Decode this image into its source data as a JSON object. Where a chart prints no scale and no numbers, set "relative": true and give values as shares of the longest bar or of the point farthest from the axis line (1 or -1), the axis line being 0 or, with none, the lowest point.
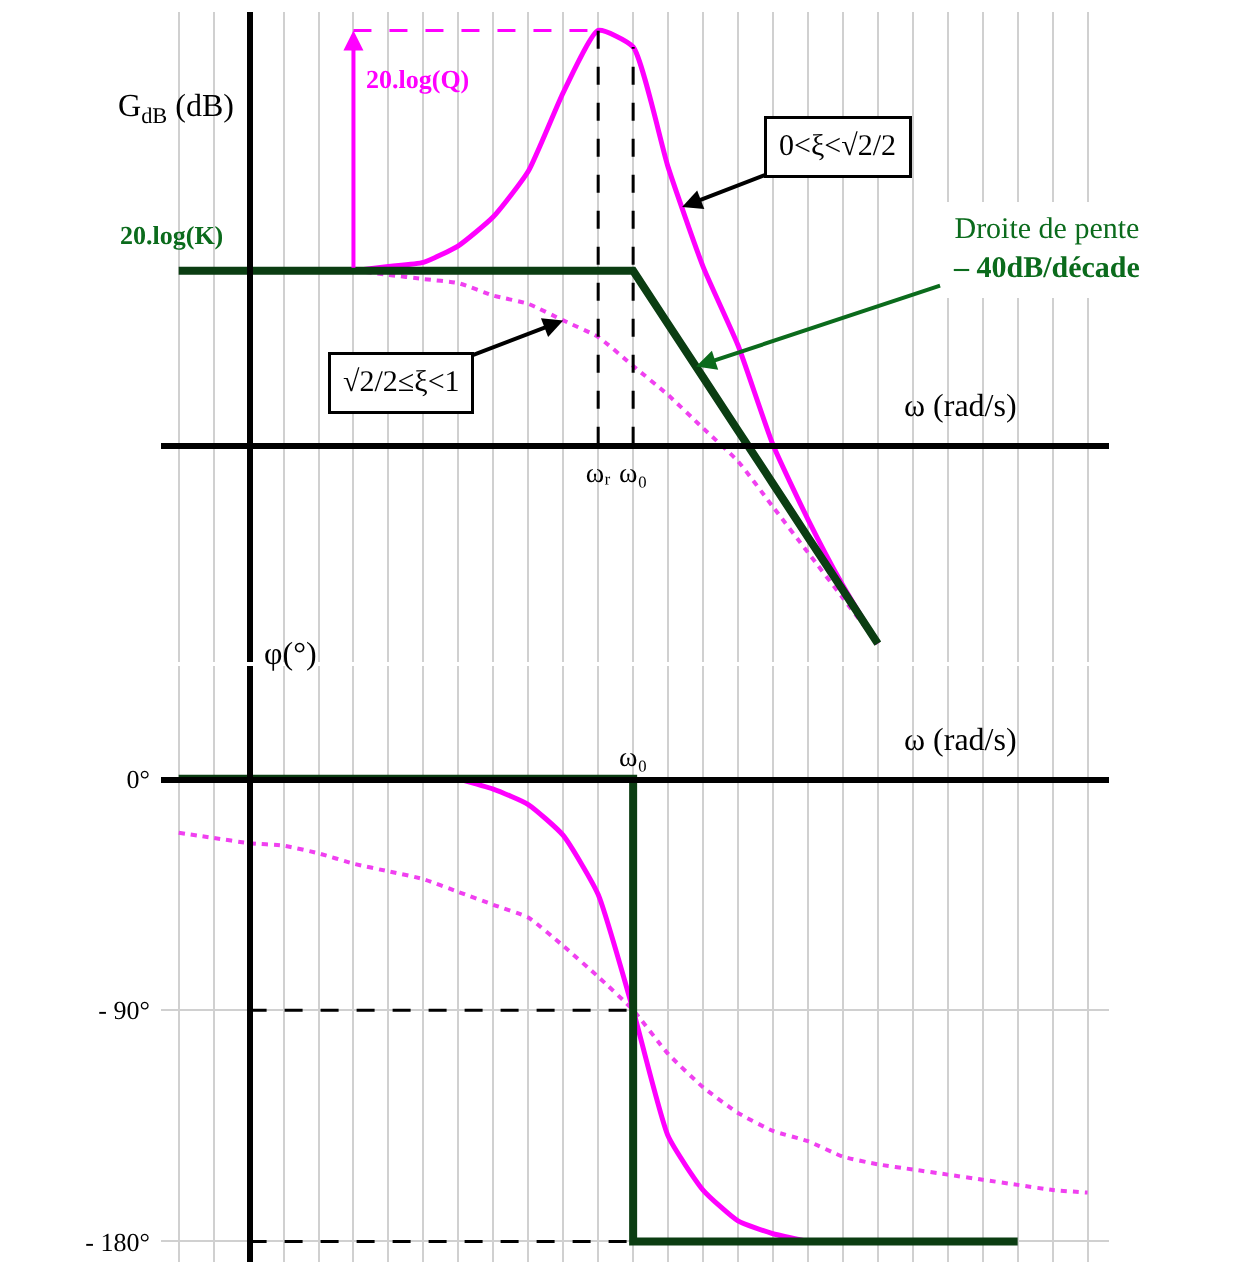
{
  "chart_data": [
    {
      "type": "line",
      "relative": true,
      "ylabel": "G$_{dB}$ (dB)",
      "xlabel": "ω (rad/s)",
      "tick_labels": "x",
      "grid": true,
      "categories": [
        null,
        null,
        null,
        null,
        null,
        null,
        null,
        null,
        null,
        null,
        null,
        null,
        null,
        null,
        null,
        null,
        null,
        "ωᵣ",
        "ω₀",
        null,
        null,
        null,
        null,
        null,
        null,
        null,
        null,
        null,
        null,
        null,
        null,
        null
      ],
      "series": [
        {
          "color": "#ff00ff",
          "line_style": "solid",
          "values": [
            null,
            null,
            null,
            null,
            null,
            null,
            null,
            null,
            null,
            null,
            0.42,
            0.43,
            0.44,
            0.48,
            0.55,
            0.66,
            0.85,
            1.0,
            0.96,
            0.67,
            0.43,
            0.24,
            0,
            -0.18,
            -0.34,
            -0.48,
            null,
            null,
            null,
            null,
            null,
            null
          ]
        },
        {
          "color": "#f040f0",
          "line_style": "dotted",
          "values": [
            null,
            null,
            null,
            null,
            null,
            null,
            null,
            null,
            null,
            null,
            0.42,
            0.41,
            0.4,
            0.39,
            0.36,
            0.34,
            0.3,
            0.26,
            0.19,
            0.12,
            0.04,
            -0.04,
            -0.15,
            -0.26,
            -0.37,
            -0.48,
            null,
            null,
            null,
            null,
            null,
            null
          ]
        },
        {
          "color": "#0b3d12",
          "line_style": "solid",
          "values": [
            null,
            null,
            null,
            null,
            null,
            0.42,
            0.42,
            0.42,
            0.42,
            0.42,
            0.42,
            0.42,
            0.42,
            0.42,
            0.42,
            0.42,
            0.42,
            0.42,
            0.42,
            0.291,
            0.163,
            0.034,
            -0.094,
            -0.223,
            -0.351,
            -0.48,
            null,
            null,
            null,
            null,
            null,
            null
          ]
        }
      ],
      "ref_lines": [
        {
          "axis": "x",
          "value": "ωᵣ",
          "line_style": "dashed",
          "color": "#000000"
        },
        {
          "axis": "x",
          "value": "ω₀",
          "line_style": "dashed",
          "color": "#000000"
        }
      ],
      "annotations": [
        {
          "text": "20.log(K)",
          "y": 0.42
        },
        "20.log(Q)",
        "0<ξ<√2/2",
        "√2/2≤ξ<1",
        "Droite de pente\n– 40dB/décade"
      ]
    },
    {
      "type": "line",
      "ylabel": "φ(°)",
      "xlabel": "ω (rad/s)",
      "ylim": [
        -188,
        44
      ],
      "yticks": [
        {
          "value": 0,
          "label": "0°"
        },
        {
          "value": -90,
          "label": "- 90°"
        },
        {
          "value": -180,
          "label": "- 180°"
        }
      ],
      "grid": true,
      "categories": [
        null,
        null,
        null,
        null,
        null,
        null,
        null,
        null,
        null,
        null,
        null,
        null,
        null,
        null,
        null,
        null,
        null,
        null,
        "ω₀",
        null,
        null,
        null,
        null,
        null,
        null,
        null,
        null,
        null,
        null,
        null,
        null,
        null
      ],
      "series": [
        {
          "color": "#ff00ff",
          "line_style": "solid",
          "values": [
            null,
            null,
            null,
            null,
            null,
            null,
            null,
            null,
            null,
            null,
            null,
            null,
            null,
            0,
            -4,
            -10,
            -22,
            -45,
            -90,
            -139,
            -160,
            -172,
            -177,
            -180,
            null,
            null,
            null,
            null,
            null,
            null,
            null,
            null
          ]
        },
        {
          "color": "#f040f0",
          "line_style": "dotted",
          "values": [
            null,
            null,
            null,
            null,
            null,
            -21,
            -23,
            -25,
            -26,
            -29,
            -33,
            -36,
            -39,
            -44,
            -49,
            -54,
            -65,
            -77,
            -90,
            -107,
            -120,
            -130,
            -137,
            -141,
            -147,
            -150,
            -152,
            -154,
            -156,
            -158,
            -160,
            -161
          ]
        },
        {
          "type": "step",
          "color": "#0b3d12",
          "line_style": "solid",
          "values": [
            null,
            null,
            null,
            null,
            null,
            0,
            0,
            0,
            0,
            0,
            0,
            0,
            0,
            0,
            0,
            0,
            0,
            0,
            -180,
            -180,
            -180,
            -180,
            -180,
            -180,
            -180,
            -180,
            -180,
            -180,
            -180,
            -180,
            null,
            null
          ]
        }
      ],
      "ref_lines": [
        {
          "axis": "y",
          "value": -90,
          "line_style": "dashed",
          "color": "#000000"
        },
        {
          "axis": "y",
          "value": -180,
          "line_style": "dashed",
          "color": "#000000"
        }
      ]
    }
  ]
}
